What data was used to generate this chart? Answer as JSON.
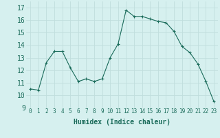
{
  "x": [
    0,
    1,
    2,
    3,
    4,
    5,
    6,
    7,
    8,
    9,
    10,
    11,
    12,
    13,
    14,
    15,
    16,
    17,
    18,
    19,
    20,
    21,
    22,
    23
  ],
  "y": [
    10.5,
    10.4,
    12.6,
    13.5,
    13.5,
    12.2,
    11.1,
    11.3,
    11.1,
    11.3,
    13.0,
    14.1,
    16.8,
    16.3,
    16.3,
    16.1,
    15.9,
    15.8,
    15.1,
    13.9,
    13.4,
    12.5,
    11.1,
    9.5
  ],
  "xlim": [
    -0.5,
    23.5
  ],
  "ylim": [
    9,
    17.5
  ],
  "yticks": [
    9,
    10,
    11,
    12,
    13,
    14,
    15,
    16,
    17
  ],
  "xticks": [
    0,
    1,
    2,
    3,
    4,
    5,
    6,
    7,
    8,
    9,
    10,
    11,
    12,
    13,
    14,
    15,
    16,
    17,
    18,
    19,
    20,
    21,
    22,
    23
  ],
  "xlabel": "Humidex (Indice chaleur)",
  "line_color": "#1a6b5a",
  "marker": "+",
  "bg_color": "#d6f0ef",
  "grid_color": "#c0dedd",
  "tick_color": "#1a6b5a",
  "xlabel_color": "#1a6b5a",
  "xlabel_fontsize": 7,
  "ytick_fontsize": 7,
  "xtick_fontsize": 5.5
}
